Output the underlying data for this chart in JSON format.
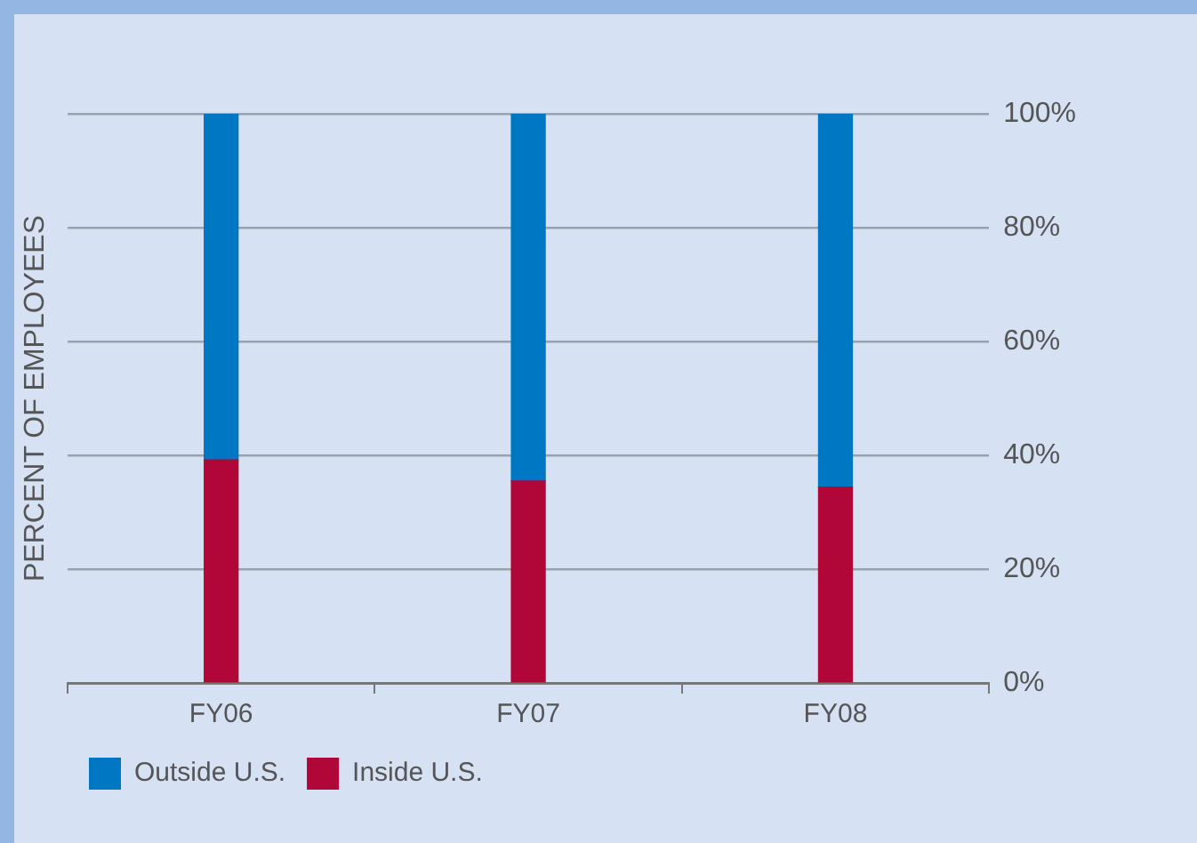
{
  "chart_data": {
    "type": "bar",
    "stacked": true,
    "ylabel": "PERCENT OF EMPLOYEES",
    "categories": [
      "FY06",
      "FY07",
      "FY08"
    ],
    "series": [
      {
        "name": "Inside U.S.",
        "color": "#b10638",
        "values": [
          39.2,
          35.5,
          34.4
        ]
      },
      {
        "name": "Outside U.S.",
        "color": "#0077c3",
        "values": [
          60.8,
          64.5,
          65.6
        ]
      }
    ],
    "ylim": [
      0,
      100
    ],
    "yticks": [
      {
        "value": 0,
        "label": "0%"
      },
      {
        "value": 20,
        "label": "20%"
      },
      {
        "value": 40,
        "label": "40%"
      },
      {
        "value": 60,
        "label": "60%"
      },
      {
        "value": 80,
        "label": "80%"
      },
      {
        "value": 100,
        "label": "100%"
      }
    ],
    "grid": "y",
    "legend": "bottom left"
  }
}
